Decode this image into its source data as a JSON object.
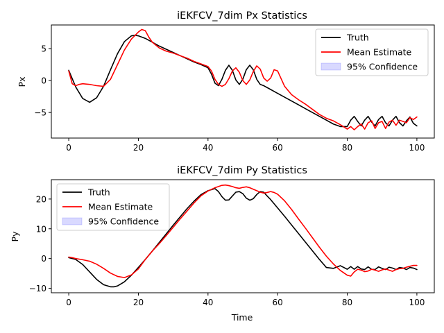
{
  "chart_data": [
    {
      "type": "line",
      "title": "iEKFCV_7dim Px Statistics",
      "xlabel": "",
      "ylabel": "Px",
      "xlim": [
        -5,
        105
      ],
      "ylim": [
        -9,
        8.7
      ],
      "xticks": [
        0,
        20,
        40,
        60,
        80,
        100
      ],
      "yticks": [
        -5,
        0,
        5
      ],
      "legend": {
        "placement": "upper right",
        "entries": [
          "Truth",
          "Mean Estimate",
          "95% Confidence"
        ]
      },
      "series": [
        {
          "name": "Truth",
          "color": "#000000",
          "x": [
            0,
            2,
            4,
            6,
            8,
            10,
            12,
            14,
            16,
            18,
            19,
            20,
            22,
            24,
            26,
            28,
            30,
            32,
            34,
            36,
            38,
            40,
            41,
            42,
            43,
            44,
            45,
            46,
            47,
            48,
            49,
            50,
            51,
            52,
            53,
            54,
            55,
            56,
            57,
            58,
            59,
            60,
            62,
            64,
            66,
            68,
            70,
            72,
            74,
            76,
            78,
            80,
            81,
            82,
            83,
            84,
            85,
            86,
            87,
            88,
            89,
            90,
            91,
            92,
            93,
            94,
            95,
            96,
            97,
            98,
            99,
            100
          ],
          "y": [
            1.6,
            -1.0,
            -2.8,
            -3.4,
            -2.7,
            -0.9,
            1.7,
            4.2,
            6.1,
            7.0,
            7.1,
            7.0,
            6.6,
            6.0,
            5.4,
            4.9,
            4.4,
            3.9,
            3.4,
            2.9,
            2.5,
            2.0,
            1.0,
            -0.4,
            -0.8,
            0.2,
            1.6,
            2.4,
            1.6,
            0.1,
            -0.6,
            0.2,
            1.7,
            2.4,
            1.7,
            0.2,
            -0.6,
            -0.8,
            -1.1,
            -1.4,
            -1.7,
            -2.0,
            -2.6,
            -3.2,
            -3.8,
            -4.4,
            -5.0,
            -5.6,
            -6.2,
            -6.8,
            -7.2,
            -7.2,
            -6.2,
            -5.6,
            -6.4,
            -7.1,
            -6.2,
            -5.6,
            -6.5,
            -7.1,
            -6.1,
            -5.6,
            -6.6,
            -7.1,
            -6.2,
            -5.6,
            -6.6,
            -7.1,
            -6.3,
            -5.7,
            -6.7,
            -7.1
          ],
          "y_note": "values read from figure"
        },
        {
          "name": "Mean Estimate",
          "color": "#ff0000",
          "x": [
            0,
            1,
            2,
            3,
            4,
            6,
            8,
            10,
            12,
            14,
            16,
            18,
            20,
            21,
            22,
            23,
            24,
            26,
            28,
            30,
            32,
            34,
            36,
            38,
            40,
            41,
            42,
            43,
            44,
            45,
            46,
            47,
            48,
            49,
            50,
            51,
            52,
            53,
            54,
            55,
            56,
            57,
            58,
            59,
            60,
            62,
            64,
            66,
            68,
            70,
            72,
            74,
            76,
            78,
            80,
            81,
            82,
            83,
            84,
            85,
            86,
            87,
            88,
            89,
            90,
            91,
            92,
            93,
            94,
            95,
            96,
            97,
            98,
            99,
            100
          ],
          "y": [
            1.5,
            -0.5,
            -0.8,
            -0.6,
            -0.5,
            -0.6,
            -0.8,
            -0.9,
            0.2,
            2.5,
            4.8,
            6.5,
            7.6,
            8.0,
            7.8,
            6.8,
            6.0,
            5.1,
            4.6,
            4.3,
            3.9,
            3.5,
            3.0,
            2.6,
            2.2,
            1.5,
            0.2,
            -0.6,
            -0.9,
            -0.6,
            0.3,
            1.5,
            2.0,
            1.3,
            0.0,
            -0.6,
            0.1,
            1.4,
            2.3,
            1.8,
            0.4,
            -0.1,
            0.4,
            1.7,
            1.5,
            -0.9,
            -2.2,
            -3.0,
            -3.7,
            -4.5,
            -5.3,
            -5.9,
            -6.3,
            -6.9,
            -7.6,
            -7.2,
            -7.7,
            -7.2,
            -6.8,
            -7.6,
            -6.6,
            -6.3,
            -7.5,
            -6.6,
            -6.4,
            -7.5,
            -6.5,
            -6.2,
            -7.0,
            -6.2,
            -6.4,
            -6.6,
            -5.8,
            -6.1,
            -5.7
          ]
        }
      ]
    },
    {
      "type": "line",
      "title": "iEKFCV_7dim Py Statistics",
      "xlabel": "Time",
      "ylabel": "Py",
      "xlim": [
        -5,
        105
      ],
      "ylim": [
        -11.5,
        26.5
      ],
      "xticks": [
        0,
        20,
        40,
        60,
        80,
        100
      ],
      "yticks": [
        -10,
        0,
        10,
        20
      ],
      "legend": {
        "placement": "upper left",
        "entries": [
          "Truth",
          "Mean Estimate",
          "95% Confidence"
        ]
      },
      "series": [
        {
          "name": "Truth",
          "color": "#000000",
          "x": [
            0,
            2,
            4,
            6,
            8,
            10,
            12,
            13,
            14,
            16,
            18,
            20,
            22,
            24,
            26,
            28,
            30,
            32,
            34,
            36,
            38,
            40,
            42,
            43,
            44,
            45,
            46,
            47,
            48,
            49,
            50,
            51,
            52,
            53,
            54,
            55,
            56,
            57,
            58,
            59,
            60,
            62,
            64,
            66,
            68,
            70,
            72,
            74,
            76,
            78,
            80,
            81,
            82,
            83,
            84,
            85,
            86,
            87,
            88,
            89,
            90,
            91,
            92,
            93,
            94,
            95,
            96,
            97,
            98,
            99,
            100
          ],
          "y": [
            0.3,
            -0.3,
            -2.0,
            -4.5,
            -7.0,
            -8.8,
            -9.5,
            -9.5,
            -9.2,
            -7.8,
            -5.6,
            -3.0,
            -0.3,
            2.5,
            5.4,
            8.3,
            11.2,
            14.0,
            16.8,
            19.3,
            21.5,
            22.8,
            23.5,
            22.5,
            20.8,
            19.6,
            19.7,
            21.0,
            22.3,
            22.5,
            21.8,
            20.3,
            19.6,
            20.1,
            21.5,
            22.5,
            22.3,
            21.0,
            19.8,
            18.4,
            17.0,
            14.2,
            11.3,
            8.4,
            5.5,
            2.6,
            -0.3,
            -3.0,
            -3.3,
            -2.4,
            -3.6,
            -2.7,
            -3.6,
            -2.7,
            -3.5,
            -3.7,
            -2.8,
            -3.6,
            -3.7,
            -2.8,
            -3.3,
            -3.7,
            -2.9,
            -3.2,
            -3.7,
            -3.0,
            -3.2,
            -3.7,
            -3.0,
            -3.2,
            -3.7
          ]
        },
        {
          "name": "Mean Estimate",
          "color": "#ff0000",
          "x": [
            0,
            1,
            2,
            4,
            6,
            8,
            10,
            12,
            14,
            16,
            18,
            20,
            22,
            24,
            26,
            28,
            30,
            32,
            34,
            36,
            38,
            40,
            42,
            44,
            45,
            46,
            47,
            48,
            49,
            50,
            51,
            52,
            53,
            54,
            55,
            56,
            57,
            58,
            59,
            60,
            62,
            64,
            66,
            68,
            70,
            72,
            74,
            76,
            78,
            80,
            81,
            82,
            83,
            84,
            85,
            86,
            87,
            88,
            89,
            90,
            91,
            92,
            93,
            94,
            95,
            96,
            97,
            98,
            99,
            100
          ],
          "y": [
            0.5,
            0.3,
            0.0,
            -0.4,
            -0.9,
            -1.9,
            -3.3,
            -4.9,
            -6.0,
            -6.4,
            -5.5,
            -3.5,
            -0.3,
            2.5,
            5.0,
            7.7,
            10.5,
            13.3,
            16.0,
            18.7,
            21.1,
            22.7,
            23.8,
            24.6,
            24.7,
            24.5,
            24.2,
            23.8,
            23.6,
            23.9,
            24.1,
            23.8,
            23.3,
            22.8,
            22.3,
            22.0,
            22.2,
            22.5,
            22.2,
            21.6,
            19.4,
            16.5,
            13.3,
            10.2,
            7.0,
            3.8,
            0.8,
            -1.8,
            -4.0,
            -5.6,
            -5.9,
            -4.5,
            -3.6,
            -3.9,
            -4.4,
            -4.2,
            -3.6,
            -3.9,
            -4.3,
            -3.8,
            -3.5,
            -3.9,
            -4.3,
            -3.7,
            -3.4,
            -3.3,
            -2.9,
            -2.6,
            -2.3,
            -2.3
          ]
        }
      ]
    }
  ]
}
